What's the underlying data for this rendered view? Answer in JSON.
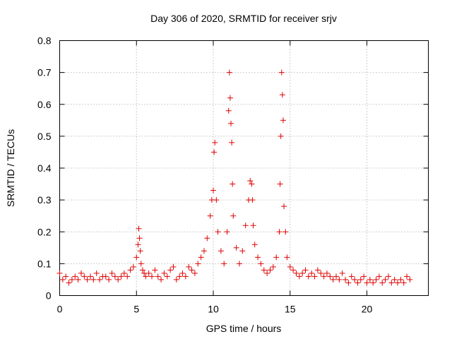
{
  "chart_data": {
    "type": "scatter",
    "title": "Day 306 of 2020, SRMTID for receiver srjv",
    "xlabel": "GPS time / hours",
    "ylabel": "SRMTID / TECUs",
    "xlim": [
      0,
      24
    ],
    "ylim": [
      0,
      0.8
    ],
    "x_ticks": [
      0,
      5,
      10,
      15,
      20
    ],
    "x_tick_labels": [
      "0",
      "5",
      "10",
      "15",
      "20"
    ],
    "y_ticks": [
      0,
      0.1,
      0.2,
      0.3,
      0.4,
      0.5,
      0.6,
      0.7,
      0.8
    ],
    "y_tick_labels": [
      "0",
      "0.1",
      "0.2",
      "0.3",
      "0.4",
      "0.5",
      "0.6",
      "0.7",
      "0.8"
    ],
    "grid": true,
    "marker": "+",
    "color": "#e00000",
    "series": [
      {
        "name": "SRMTID",
        "x": [
          0.0,
          0.2,
          0.4,
          0.6,
          0.8,
          1.0,
          1.2,
          1.4,
          1.6,
          1.8,
          2.0,
          2.2,
          2.4,
          2.6,
          2.8,
          3.0,
          3.2,
          3.4,
          3.6,
          3.8,
          4.0,
          4.2,
          4.4,
          4.6,
          4.8,
          5.0,
          5.1,
          5.15,
          5.2,
          5.25,
          5.3,
          5.4,
          5.5,
          5.6,
          5.8,
          6.0,
          6.2,
          6.4,
          6.6,
          6.8,
          7.0,
          7.2,
          7.4,
          7.6,
          7.8,
          8.0,
          8.2,
          8.4,
          8.6,
          8.8,
          9.0,
          9.2,
          9.4,
          9.6,
          9.8,
          9.9,
          10.0,
          10.05,
          10.1,
          10.2,
          10.3,
          10.5,
          10.7,
          10.9,
          11.0,
          11.05,
          11.1,
          11.15,
          11.2,
          11.25,
          11.3,
          11.5,
          11.7,
          11.9,
          12.1,
          12.3,
          12.4,
          12.5,
          12.55,
          12.6,
          12.7,
          12.9,
          13.1,
          13.3,
          13.5,
          13.7,
          13.9,
          14.1,
          14.3,
          14.35,
          14.4,
          14.45,
          14.5,
          14.55,
          14.6,
          14.7,
          14.8,
          15.0,
          15.2,
          15.4,
          15.6,
          15.8,
          16.0,
          16.2,
          16.4,
          16.6,
          16.8,
          17.0,
          17.2,
          17.4,
          17.6,
          17.8,
          18.0,
          18.2,
          18.4,
          18.6,
          18.8,
          19.0,
          19.2,
          19.4,
          19.6,
          19.8,
          20.0,
          20.2,
          20.4,
          20.6,
          20.8,
          21.0,
          21.2,
          21.4,
          21.6,
          21.8,
          22.0,
          22.2,
          22.4,
          22.6,
          22.8
        ],
        "y": [
          0.07,
          0.05,
          0.06,
          0.04,
          0.05,
          0.06,
          0.05,
          0.07,
          0.06,
          0.05,
          0.06,
          0.05,
          0.07,
          0.05,
          0.06,
          0.06,
          0.05,
          0.07,
          0.06,
          0.05,
          0.06,
          0.07,
          0.06,
          0.08,
          0.09,
          0.12,
          0.16,
          0.21,
          0.18,
          0.14,
          0.1,
          0.08,
          0.07,
          0.06,
          0.07,
          0.06,
          0.08,
          0.06,
          0.05,
          0.07,
          0.06,
          0.08,
          0.09,
          0.05,
          0.06,
          0.07,
          0.06,
          0.09,
          0.08,
          0.07,
          0.1,
          0.12,
          0.14,
          0.18,
          0.25,
          0.3,
          0.33,
          0.45,
          0.48,
          0.3,
          0.2,
          0.14,
          0.1,
          0.2,
          0.58,
          0.7,
          0.62,
          0.54,
          0.48,
          0.35,
          0.25,
          0.15,
          0.1,
          0.14,
          0.22,
          0.3,
          0.36,
          0.35,
          0.3,
          0.22,
          0.16,
          0.12,
          0.1,
          0.08,
          0.07,
          0.08,
          0.09,
          0.12,
          0.2,
          0.35,
          0.5,
          0.7,
          0.63,
          0.55,
          0.28,
          0.2,
          0.12,
          0.09,
          0.08,
          0.07,
          0.06,
          0.07,
          0.08,
          0.06,
          0.07,
          0.06,
          0.08,
          0.07,
          0.06,
          0.07,
          0.06,
          0.05,
          0.06,
          0.05,
          0.07,
          0.05,
          0.04,
          0.06,
          0.05,
          0.04,
          0.05,
          0.06,
          0.04,
          0.05,
          0.04,
          0.05,
          0.06,
          0.04,
          0.05,
          0.06,
          0.04,
          0.05,
          0.04,
          0.05,
          0.04,
          0.06,
          0.05
        ]
      }
    ]
  }
}
